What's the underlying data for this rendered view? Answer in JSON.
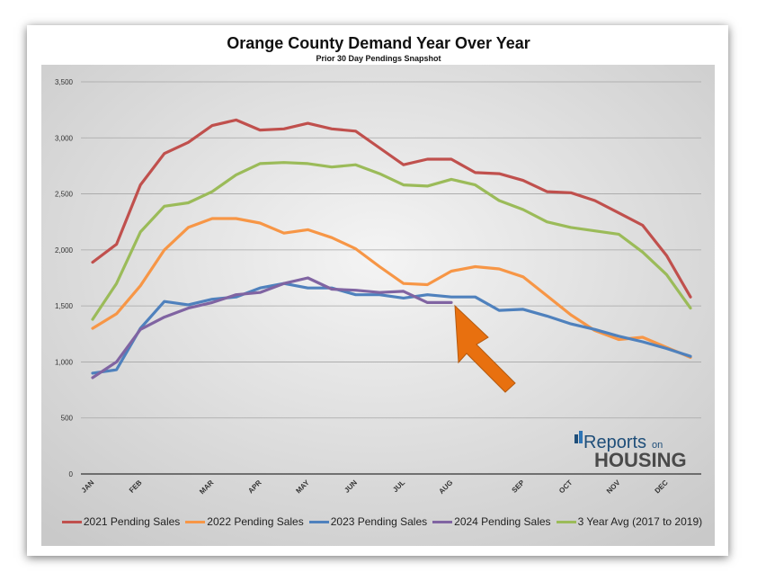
{
  "chart_data": {
    "type": "line",
    "title": "Orange County Demand Year Over Year",
    "subtitle": "Prior 30 Day Pendings Snapshot",
    "xlabel": "",
    "ylabel": "",
    "ylim": [
      0,
      3500
    ],
    "yticks": [
      0,
      500,
      1000,
      1500,
      2000,
      2500,
      3000,
      3500
    ],
    "ytick_labels": [
      "0",
      "500",
      "1,000",
      "1,500",
      "2,000",
      "2,500",
      "3,000",
      "3,500"
    ],
    "x_tick_labels": [
      "JAN",
      "FEB",
      "MAR",
      "APR",
      "MAY",
      "JUN",
      "JUL",
      "AUG",
      "SEP",
      "OCT",
      "NOV",
      "DEC"
    ],
    "x_tick_index": [
      0,
      2,
      5,
      7,
      9,
      11,
      13,
      15,
      18,
      20,
      22,
      24
    ],
    "grid": true,
    "legend_position": "bottom",
    "series": [
      {
        "name": "2021 Pending Sales",
        "color": "#c0504d",
        "values": [
          1890,
          2050,
          2580,
          2860,
          2960,
          3110,
          3160,
          3070,
          3080,
          3130,
          3080,
          3060,
          2910,
          2760,
          2810,
          2810,
          2690,
          2680,
          2620,
          2520,
          2510,
          2440,
          2330,
          2220,
          1950,
          1580
        ]
      },
      {
        "name": "2022 Pending Sales",
        "color": "#f79646",
        "values": [
          1300,
          1430,
          1680,
          2000,
          2200,
          2280,
          2280,
          2240,
          2150,
          2180,
          2110,
          2010,
          1850,
          1700,
          1690,
          1810,
          1850,
          1830,
          1760,
          1590,
          1420,
          1280,
          1200,
          1220,
          1130,
          1040
        ]
      },
      {
        "name": "2023 Pending Sales",
        "color": "#4f81bd",
        "values": [
          900,
          930,
          1300,
          1540,
          1510,
          1560,
          1580,
          1660,
          1700,
          1660,
          1660,
          1600,
          1600,
          1570,
          1600,
          1580,
          1580,
          1460,
          1470,
          1410,
          1340,
          1290,
          1230,
          1180,
          1120,
          1050
        ]
      },
      {
        "name": "2024 Pending Sales",
        "color": "#8064a2",
        "values": [
          860,
          1000,
          1290,
          1400,
          1480,
          1530,
          1600,
          1620,
          1700,
          1750,
          1650,
          1640,
          1620,
          1630,
          1530,
          1530
        ]
      },
      {
        "name": "3 Year Avg (2017 to 2019)",
        "color": "#9bbb59",
        "values": [
          1380,
          1700,
          2160,
          2390,
          2420,
          2520,
          2670,
          2770,
          2780,
          2770,
          2740,
          2760,
          2680,
          2580,
          2570,
          2630,
          2580,
          2440,
          2360,
          2250,
          2200,
          2170,
          2140,
          1980,
          1780,
          1480
        ]
      }
    ]
  },
  "logo": {
    "line1": "Reports",
    "line1_small": "on",
    "line2": "HOUSING"
  }
}
